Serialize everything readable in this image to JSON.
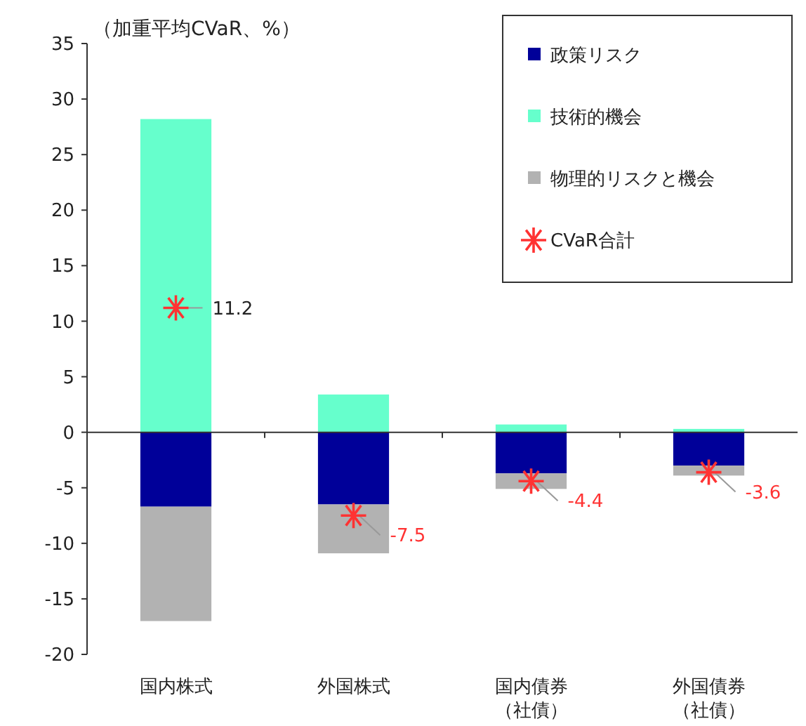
{
  "chart_data": {
    "type": "bar",
    "ylabel": "（加重平均CVaR、%）",
    "categories": [
      "国内株式",
      "外国株式",
      "国内債券（社債）",
      "外国債券（社債）"
    ],
    "stacked": true,
    "series": [
      {
        "name": "政策リスク",
        "color": "#000099",
        "values": [
          -6.7,
          -6.5,
          -3.7,
          -3.0
        ]
      },
      {
        "name": "技術的機会",
        "color": "#66ffcc",
        "values": [
          28.2,
          3.4,
          0.7,
          0.3
        ]
      },
      {
        "name": "物理的リスクと機会",
        "color": "#b2b2b2",
        "values": [
          -10.3,
          -4.4,
          -1.4,
          -0.9
        ]
      },
      {
        "name": "CVaR合計",
        "type": "scatter",
        "color": "#ff3333",
        "marker": "cross",
        "values": [
          11.2,
          -7.5,
          -4.4,
          -3.6
        ],
        "value_labels": [
          "11.2",
          "-7.5",
          "-4.4",
          "-3.6"
        ]
      }
    ],
    "ylim": [
      -20,
      35
    ],
    "yticks": [
      -20,
      -15,
      -10,
      -5,
      0,
      5,
      10,
      15,
      20,
      25,
      30,
      35
    ],
    "legend": "top right"
  }
}
